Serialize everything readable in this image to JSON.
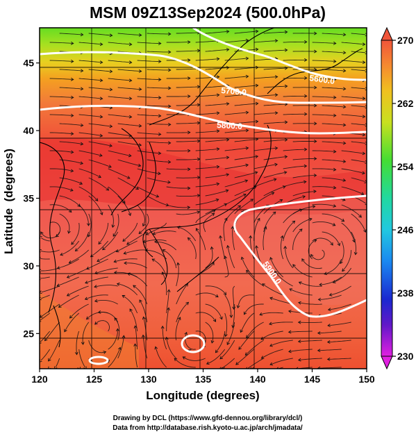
{
  "title": "MSM 09Z13Sep2024 (500.0hPa)",
  "x_label": "Longitude (degrees)",
  "y_label": "Latitude  (degrees)",
  "x_ticks": [
    "120",
    "125",
    "130",
    "135",
    "140",
    "145",
    "150"
  ],
  "x_tick_values": [
    120,
    125,
    130,
    135,
    140,
    145,
    150
  ],
  "y_ticks": [
    "25",
    "30",
    "35",
    "40",
    "45"
  ],
  "y_tick_values": [
    25,
    30,
    35,
    40,
    45
  ],
  "extent": {
    "lon": [
      120,
      150
    ],
    "lat": [
      22.4,
      47.6
    ]
  },
  "colorbar": {
    "ticks": [
      "270",
      "262",
      "254",
      "246",
      "238",
      "230"
    ],
    "tick_values": [
      270,
      262,
      254,
      246,
      238,
      230
    ],
    "range": [
      230,
      270
    ]
  },
  "contour_labels": [
    "5600.0",
    "5700.0",
    "5800.0",
    "5900.0"
  ],
  "credits": {
    "line1": "Drawing by DCL (https://www.gfd-dennou.org/library/dcl/)",
    "line2": "Data from http://database.rish.kyoto-u.ac.jp/arch/jmadata/"
  }
}
